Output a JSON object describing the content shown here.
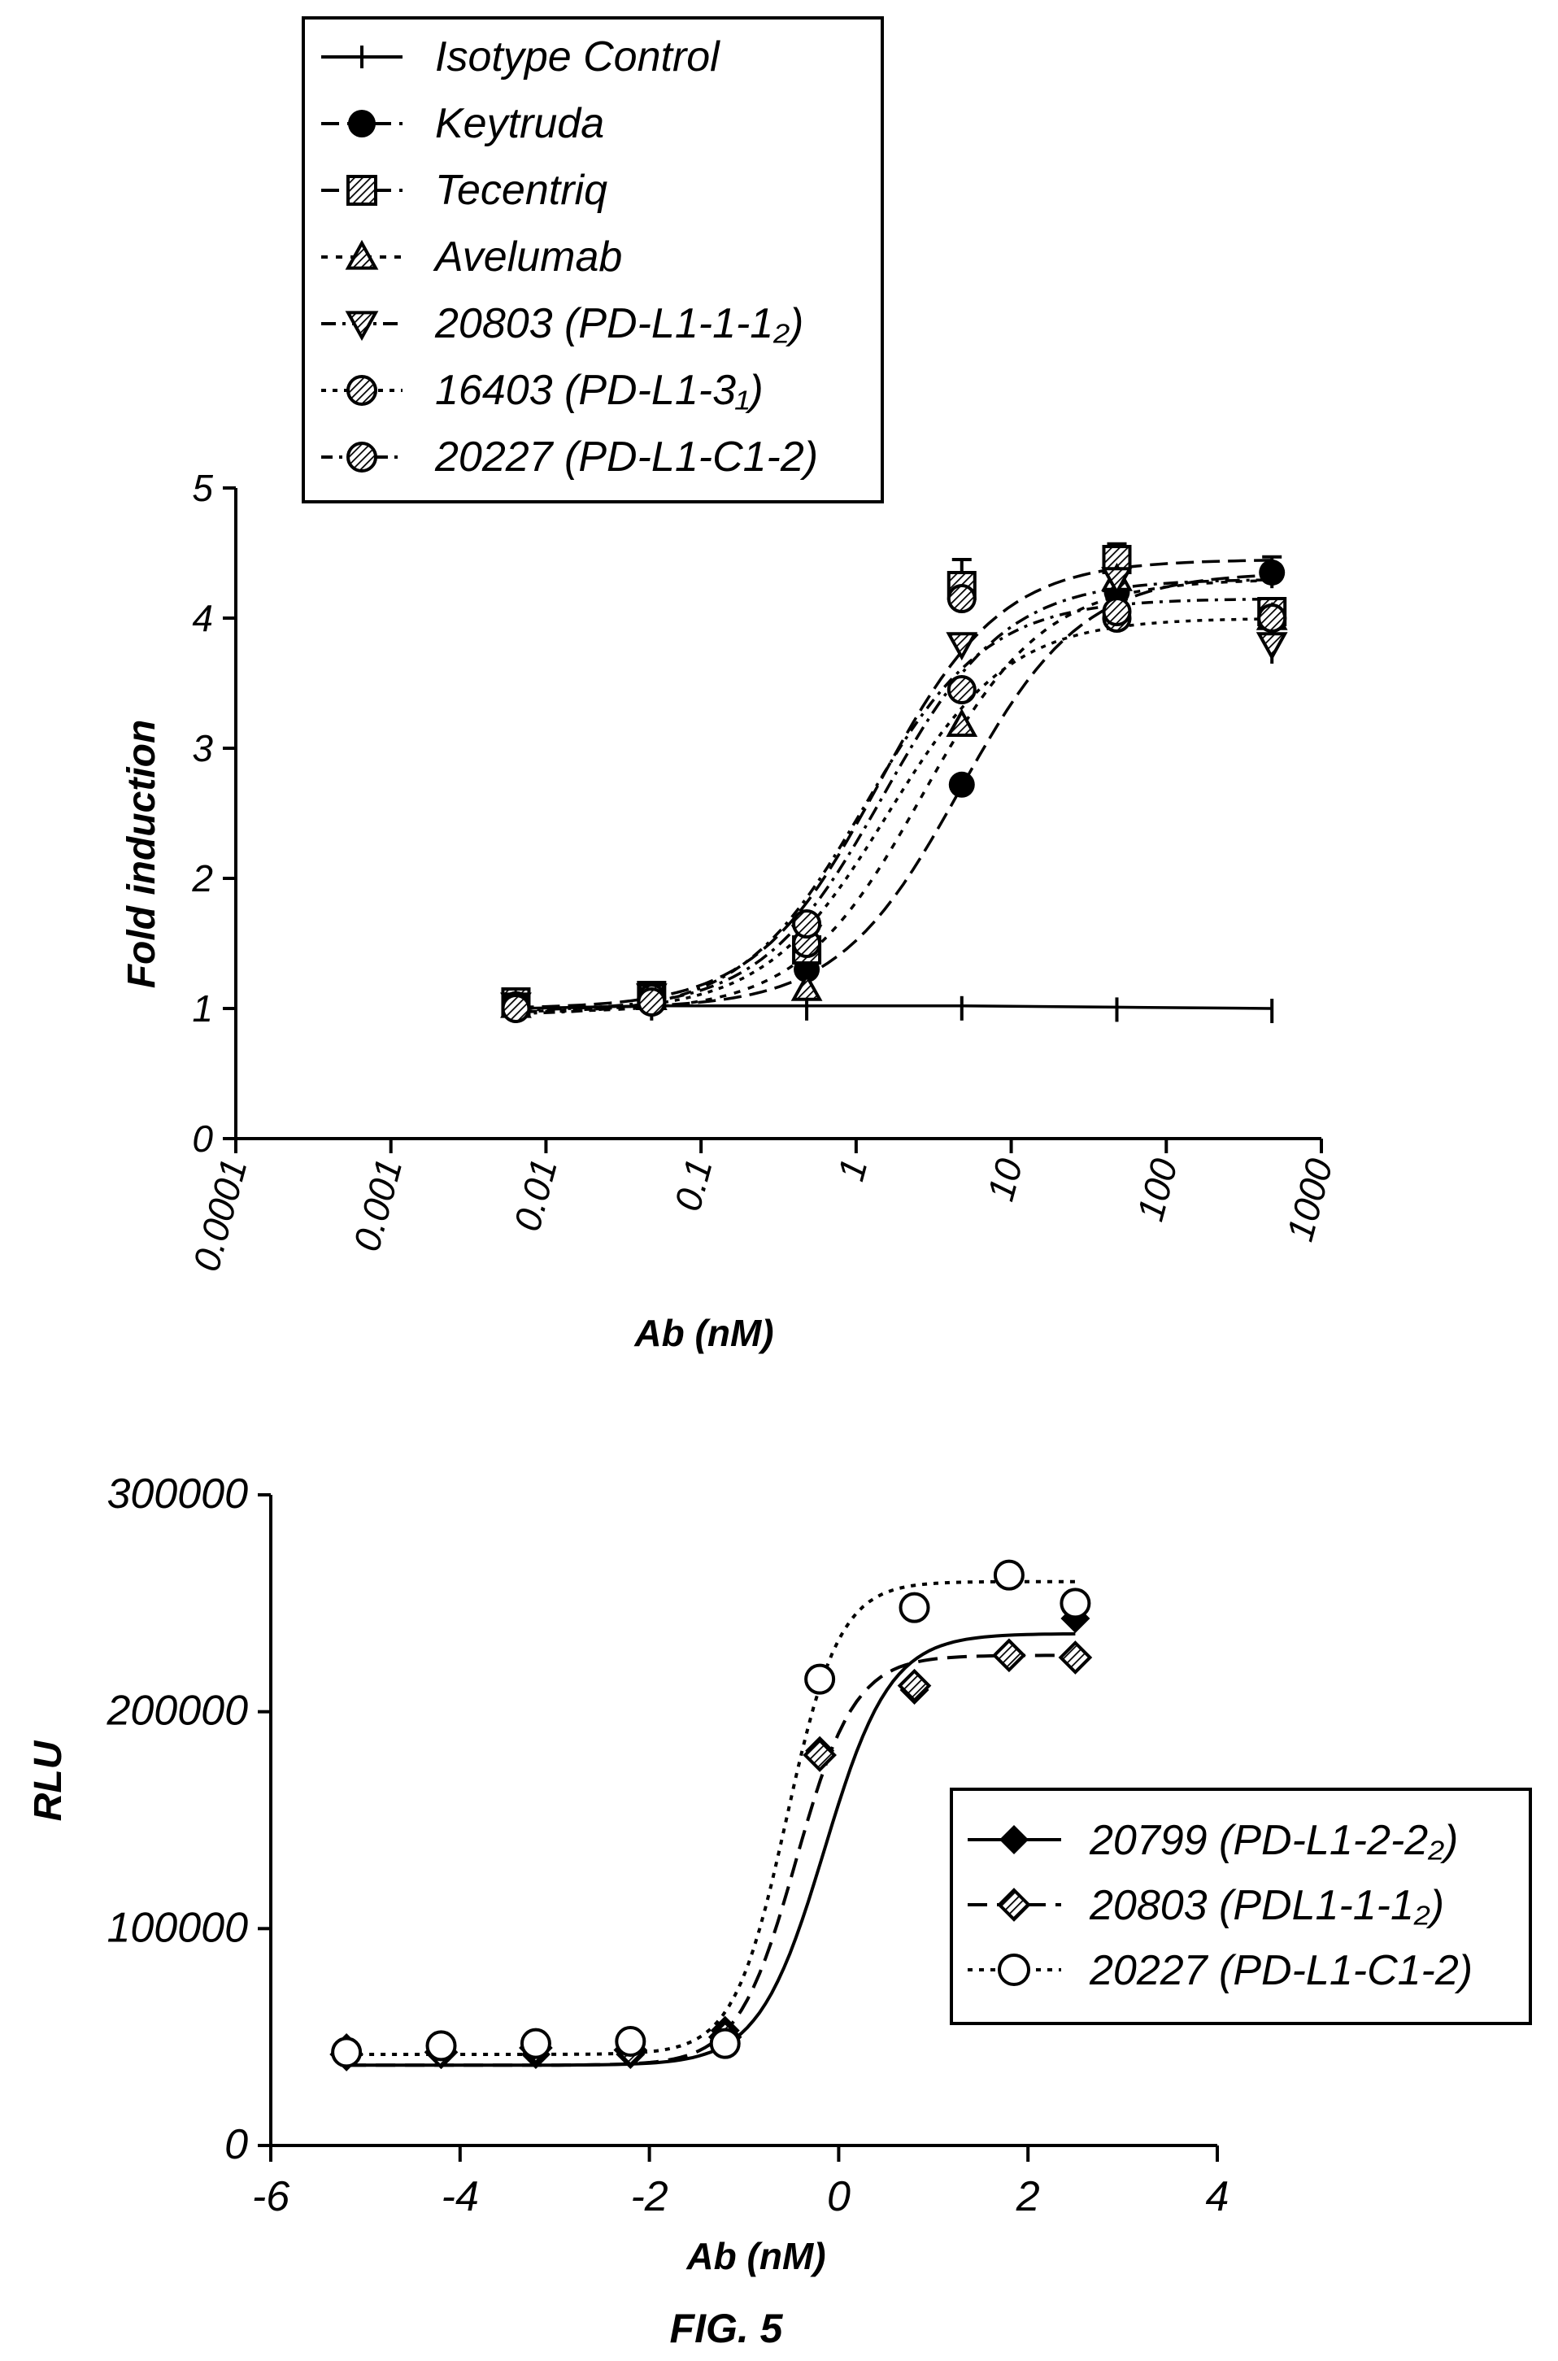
{
  "figure_label": "FIG. 5",
  "chart_data": [
    {
      "type": "scatter",
      "xscale": "log",
      "xlabel": "Ab (nM)",
      "ylabel": "Fold induction",
      "xlim": [
        0.0001,
        1000
      ],
      "ylim": [
        0,
        5
      ],
      "x_tick_labels": [
        "0.0001",
        "0.001",
        "0.01",
        "0.1",
        "1",
        "10",
        "100",
        "1000"
      ],
      "y_tick_labels": [
        "0",
        "1",
        "2",
        "3",
        "4",
        "5"
      ],
      "legend_position": "top-left",
      "series": [
        {
          "name": "Isotype Control",
          "marker": "plus",
          "x": [
            0.0064,
            0.048,
            0.48,
            4.8,
            48,
            480
          ],
          "y": [
            1.0,
            1.02,
            1.02,
            1.02,
            1.01,
            1.0
          ]
        },
        {
          "name": "Keytruda",
          "marker": "circle-filled",
          "x": [
            0.0064,
            0.048,
            0.48,
            4.8,
            48,
            480
          ],
          "y": [
            1.05,
            1.1,
            1.3,
            2.72,
            4.2,
            4.35
          ]
        },
        {
          "name": "Tecentriq",
          "marker": "square-hatched",
          "x": [
            0.0064,
            0.048,
            0.48,
            4.8,
            48,
            480
          ],
          "y": [
            1.05,
            1.1,
            1.45,
            4.25,
            4.45,
            4.05
          ]
        },
        {
          "name": "Avelumab",
          "marker": "triangle-up-dotted",
          "x": [
            0.0064,
            0.048,
            0.48,
            4.8,
            48,
            480
          ],
          "y": [
            1.02,
            1.08,
            1.15,
            3.18,
            4.3,
            4.0
          ]
        },
        {
          "name": "20803 (PD-L1-1-1₂)",
          "marker": "triangle-down",
          "x": [
            0.0064,
            0.048,
            0.48,
            4.8,
            48,
            480
          ],
          "y": [
            1.03,
            1.1,
            1.55,
            3.8,
            4.3,
            3.8
          ]
        },
        {
          "name": "16403 (PD-L1-3₁)",
          "marker": "circle-hatched",
          "x": [
            0.0064,
            0.048,
            0.48,
            4.8,
            48,
            480
          ],
          "y": [
            1.02,
            1.08,
            1.5,
            3.45,
            4.0,
            4.0
          ]
        },
        {
          "name": "20227 (PD-L1-C1-2)",
          "marker": "circle-hatched2",
          "x": [
            0.0064,
            0.048,
            0.48,
            4.8,
            48,
            480
          ],
          "y": [
            1.0,
            1.05,
            1.65,
            4.15,
            4.05,
            4.0
          ]
        }
      ]
    },
    {
      "type": "scatter",
      "xlabel": "Ab (nM)",
      "ylabel": "RLU",
      "xlim": [
        -6,
        4
      ],
      "ylim": [
        0,
        300000
      ],
      "x_tick_labels": [
        "-6",
        "-4",
        "-2",
        "0",
        "2",
        "4"
      ],
      "y_tick_labels": [
        "0",
        "100000",
        "200000",
        "300000"
      ],
      "legend_position": "center-right",
      "series": [
        {
          "name": "20799 (PD-L1-2-2₂)",
          "marker": "diamond-filled",
          "x": [
            -5.2,
            -4.2,
            -3.2,
            -2.2,
            -1.2,
            -0.2,
            0.8,
            1.8,
            2.5
          ],
          "y": [
            45000,
            42000,
            42000,
            42000,
            53000,
            182000,
            210000,
            227000,
            243000
          ]
        },
        {
          "name": "20803 (PDL1-1-1₂)",
          "marker": "diamond-hatched",
          "x": [
            -5.2,
            -4.2,
            -3.2,
            -2.2,
            -1.2,
            -0.2,
            0.8,
            1.8,
            2.5
          ],
          "y": [
            42000,
            43000,
            45000,
            44000,
            50000,
            180000,
            212000,
            226000,
            225000
          ]
        },
        {
          "name": "20227 (PD-L1-C1-2)",
          "marker": "circle-open",
          "x": [
            -5.2,
            -4.2,
            -3.2,
            -2.2,
            -1.2,
            -0.2,
            0.8,
            1.8,
            2.5
          ],
          "y": [
            43000,
            46000,
            47000,
            48000,
            47000,
            215000,
            248000,
            263000,
            250000
          ]
        }
      ]
    }
  ]
}
